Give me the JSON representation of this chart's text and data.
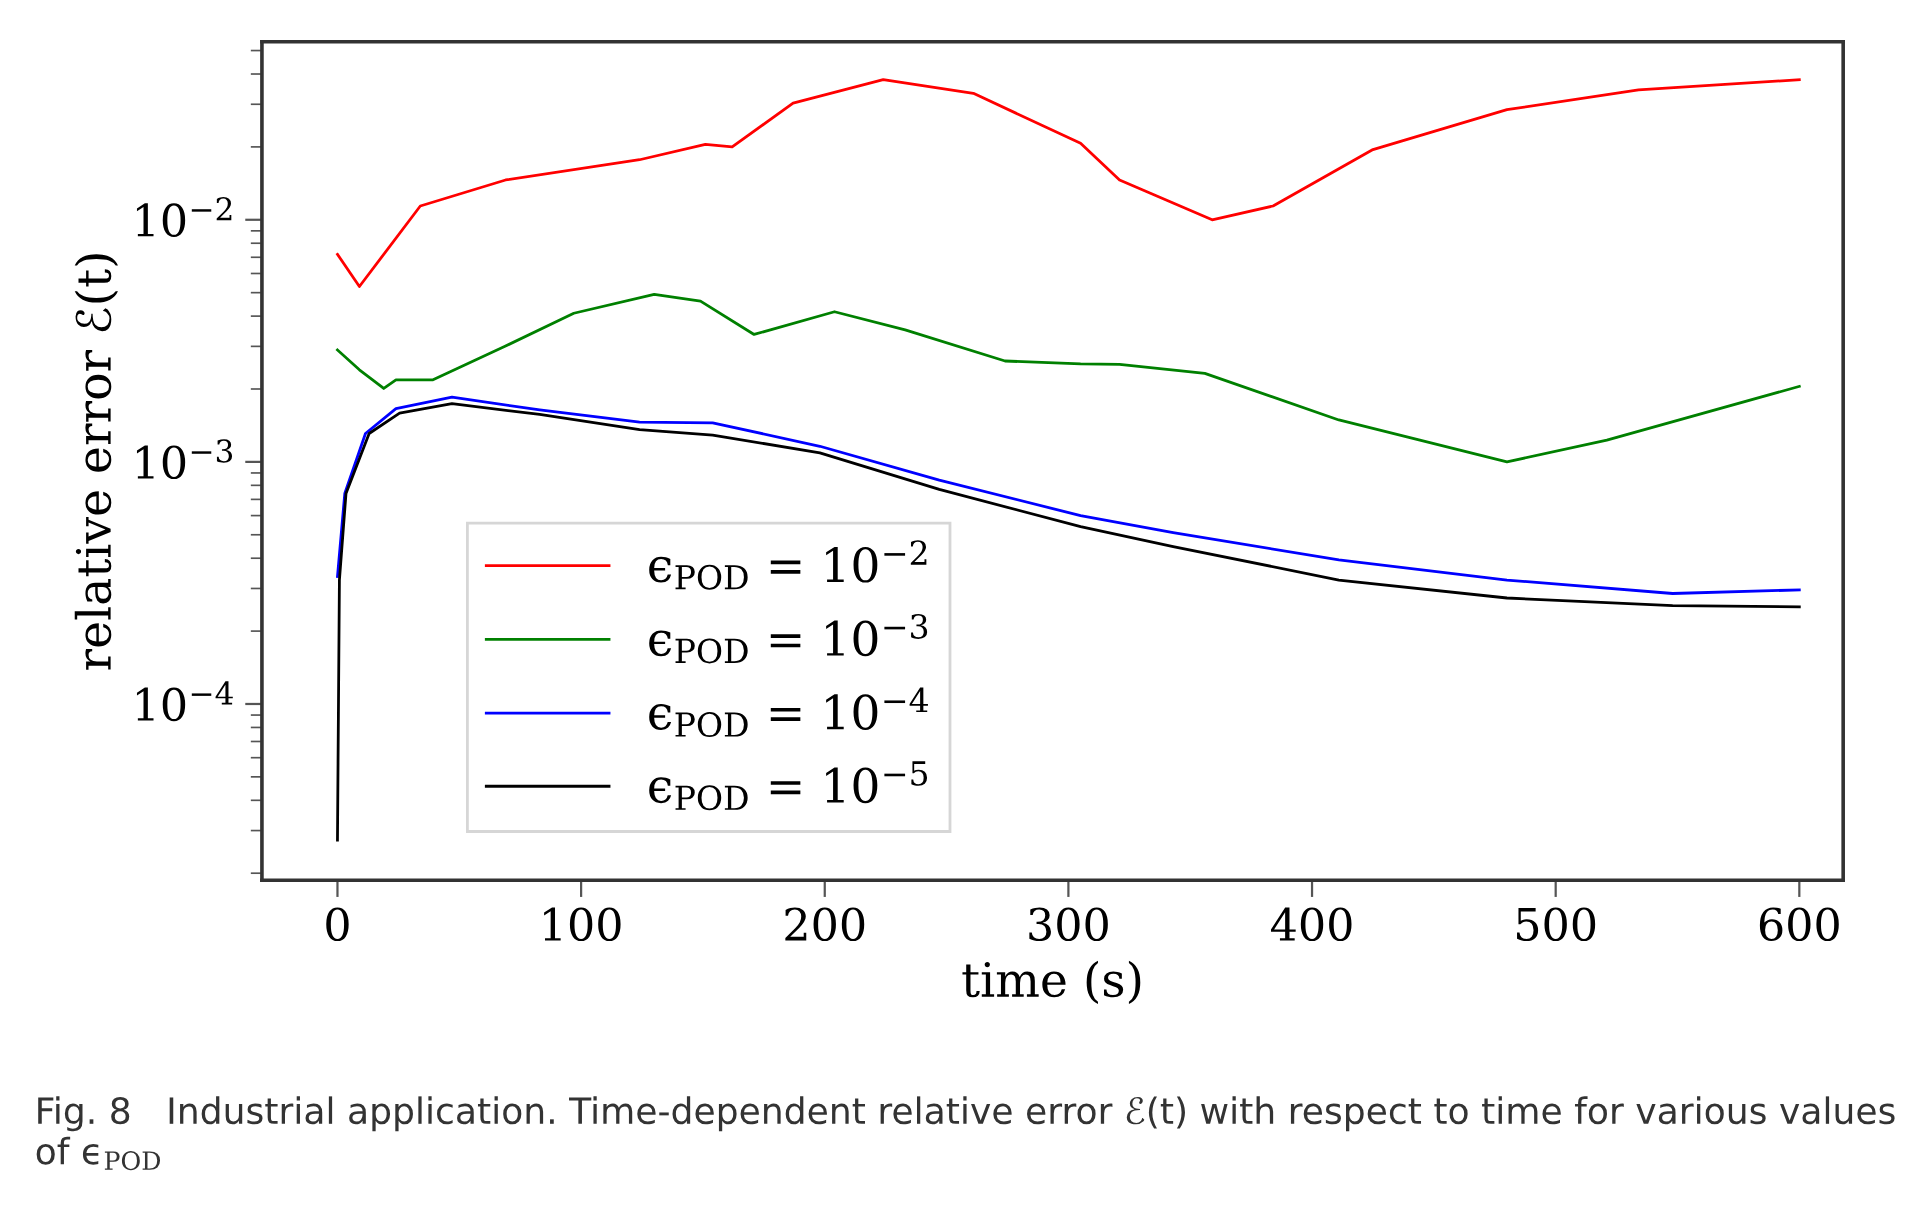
{
  "chart_data": {
    "type": "line",
    "xlabel": "time (s)",
    "ylabel": "relative error ℰ(t)",
    "log": "y",
    "xlim": [
      -31,
      618
    ],
    "ylim": [
      1.87e-05,
      0.0544
    ],
    "xticks": [
      0,
      100,
      200,
      300,
      400,
      500,
      600
    ],
    "yticks": [
      {
        "value": 0.0001,
        "label": "10$^{−4}$"
      },
      {
        "value": 0.001,
        "label": "10$^{−3}$"
      },
      {
        "value": 0.01,
        "label": "10$^{−2}$"
      }
    ],
    "grid": false,
    "legend": "bottom left",
    "line_style": "solid",
    "marker": "none",
    "annotations": [
      "Fig. 8   Industrial application. Time-dependent relative error ℰ(t) with respect to time for various values of ϵ$_{POD}$"
    ],
    "series": [
      {
        "name": "ϵ$_{POD}$ = 10$^{−2}$",
        "color": "#ff0000",
        "x": [
          0,
          9,
          34,
          69,
          124,
          151,
          162,
          187,
          224,
          261,
          305,
          321,
          359,
          384,
          425,
          480,
          534,
          600
        ],
        "values": [
          0.0072,
          0.0053,
          0.0114,
          0.0146,
          0.0177,
          0.0205,
          0.02,
          0.0303,
          0.0379,
          0.0333,
          0.0207,
          0.0146,
          0.01,
          0.0114,
          0.0195,
          0.0285,
          0.0344,
          0.0379
        ]
      },
      {
        "name": "ϵ$_{POD}$ = 10$^{−3}$",
        "color": "#008000",
        "x": [
          0,
          9,
          19,
          24,
          39,
          69,
          97,
          130,
          149,
          171,
          204,
          233,
          274,
          305,
          321,
          356,
          411,
          480,
          521,
          600
        ],
        "values": [
          0.0029,
          0.0024,
          0.00201,
          0.00218,
          0.00218,
          0.00301,
          0.00411,
          0.00492,
          0.00461,
          0.00336,
          0.00417,
          0.00351,
          0.00261,
          0.00254,
          0.00253,
          0.00232,
          0.00149,
          0.001,
          0.00123,
          0.00205
        ]
      },
      {
        "name": "ϵ$_{POD}$ = 10$^{−4}$",
        "color": "#0000ff",
        "x": [
          0,
          3,
          11.5,
          24,
          47,
          83,
          124,
          154,
          198,
          247,
          305,
          343,
          411,
          480,
          548,
          600
        ],
        "values": [
          0.000336,
          0.00074,
          0.00131,
          0.00166,
          0.00185,
          0.00164,
          0.00146,
          0.00145,
          0.00116,
          0.00084,
          0.0006,
          0.00051,
          0.000394,
          0.000325,
          0.000286,
          0.000296
        ]
      },
      {
        "name": "ϵ$_{POD}$ = 10$^{−5}$",
        "color": "#000000",
        "x": [
          0,
          0.8,
          3.5,
          13,
          25.5,
          47,
          83,
          124,
          154,
          198,
          247,
          305,
          343,
          411,
          480,
          548,
          600
        ],
        "values": [
          2.74e-05,
          0.000325,
          0.00074,
          0.00131,
          0.00159,
          0.00174,
          0.00157,
          0.00136,
          0.00129,
          0.00109,
          0.00077,
          0.00054,
          0.000447,
          0.000325,
          0.000274,
          0.000255,
          0.000252
        ]
      }
    ]
  }
}
